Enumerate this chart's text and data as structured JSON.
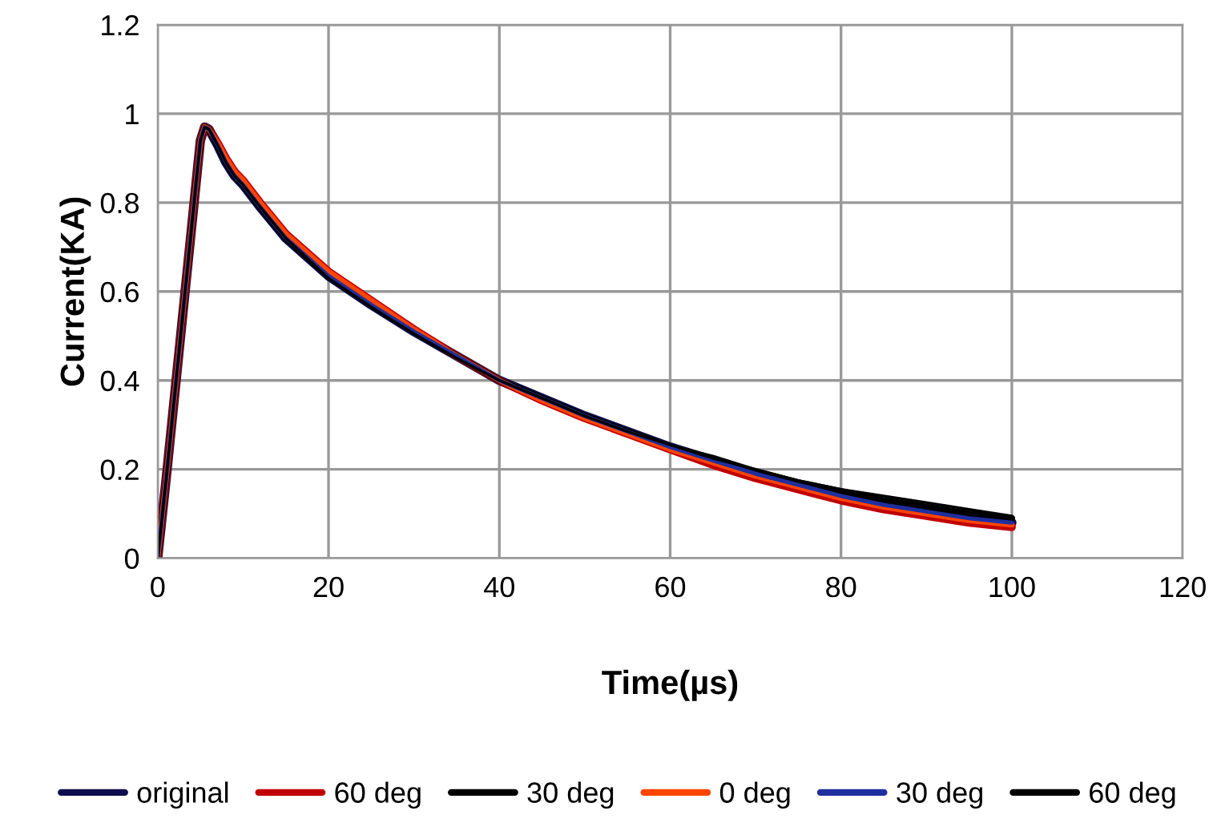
{
  "chart_data": {
    "type": "line",
    "xlabel": "Time(µs)",
    "ylabel": "Current(KA)",
    "x": [
      0,
      1,
      2,
      3,
      4,
      5,
      5.5,
      6,
      7,
      8,
      9,
      10,
      12,
      15,
      20,
      25,
      30,
      35,
      40,
      45,
      50,
      55,
      60,
      65,
      70,
      75,
      80,
      85,
      90,
      95,
      100
    ],
    "series": [
      {
        "name": "original",
        "color": "#0d0d4d",
        "values": [
          0,
          0.18,
          0.37,
          0.56,
          0.75,
          0.94,
          0.97,
          0.965,
          0.93,
          0.89,
          0.86,
          0.84,
          0.79,
          0.72,
          0.635,
          0.57,
          0.51,
          0.455,
          0.4,
          0.36,
          0.32,
          0.285,
          0.25,
          0.22,
          0.19,
          0.165,
          0.14,
          0.12,
          0.105,
          0.09,
          0.08
        ]
      },
      {
        "name": "60 deg",
        "color": "#c00000",
        "values": [
          0,
          0.18,
          0.37,
          0.56,
          0.75,
          0.94,
          0.97,
          0.965,
          0.935,
          0.9,
          0.87,
          0.85,
          0.8,
          0.73,
          0.645,
          0.58,
          0.515,
          0.455,
          0.4,
          0.355,
          0.315,
          0.28,
          0.245,
          0.21,
          0.18,
          0.155,
          0.13,
          0.11,
          0.095,
          0.08,
          0.07
        ]
      },
      {
        "name": "30 deg",
        "color": "#000000",
        "values": [
          0,
          0.18,
          0.37,
          0.56,
          0.75,
          0.94,
          0.97,
          0.965,
          0.93,
          0.89,
          0.86,
          0.84,
          0.79,
          0.72,
          0.635,
          0.57,
          0.51,
          0.455,
          0.4,
          0.36,
          0.32,
          0.285,
          0.25,
          0.225,
          0.195,
          0.17,
          0.15,
          0.13,
          0.115,
          0.1,
          0.09
        ]
      },
      {
        "name": "0 deg",
        "color": "#ff4500",
        "values": [
          0,
          0.18,
          0.37,
          0.56,
          0.75,
          0.94,
          0.97,
          0.965,
          0.935,
          0.9,
          0.87,
          0.85,
          0.8,
          0.73,
          0.645,
          0.58,
          0.515,
          0.455,
          0.4,
          0.355,
          0.315,
          0.28,
          0.245,
          0.215,
          0.185,
          0.16,
          0.135,
          0.115,
          0.1,
          0.085,
          0.075
        ]
      },
      {
        "name": "30 deg",
        "color": "#1f2f9f",
        "values": [
          0,
          0.18,
          0.37,
          0.56,
          0.75,
          0.94,
          0.97,
          0.965,
          0.93,
          0.89,
          0.86,
          0.84,
          0.79,
          0.72,
          0.635,
          0.57,
          0.51,
          0.455,
          0.4,
          0.36,
          0.32,
          0.285,
          0.25,
          0.22,
          0.19,
          0.165,
          0.14,
          0.12,
          0.105,
          0.09,
          0.08
        ]
      },
      {
        "name": "60 deg",
        "color": "#000000",
        "values": [
          0,
          0.18,
          0.37,
          0.56,
          0.75,
          0.94,
          0.97,
          0.965,
          0.93,
          0.89,
          0.86,
          0.84,
          0.79,
          0.72,
          0.63,
          0.565,
          0.505,
          0.45,
          0.4,
          0.36,
          0.32,
          0.285,
          0.255,
          0.225,
          0.2,
          0.175,
          0.155,
          0.14,
          0.125,
          0.11,
          0.095
        ]
      }
    ],
    "xlim": [
      0,
      120
    ],
    "xticks": [
      0,
      20,
      40,
      60,
      80,
      100,
      120
    ],
    "ylim": [
      0,
      1.2
    ],
    "yticks": [
      0,
      0.2,
      0.4,
      0.6,
      0.8,
      1,
      1.2
    ],
    "grid": true,
    "legend": "bottom",
    "marker": "none",
    "line_style": "solid"
  }
}
